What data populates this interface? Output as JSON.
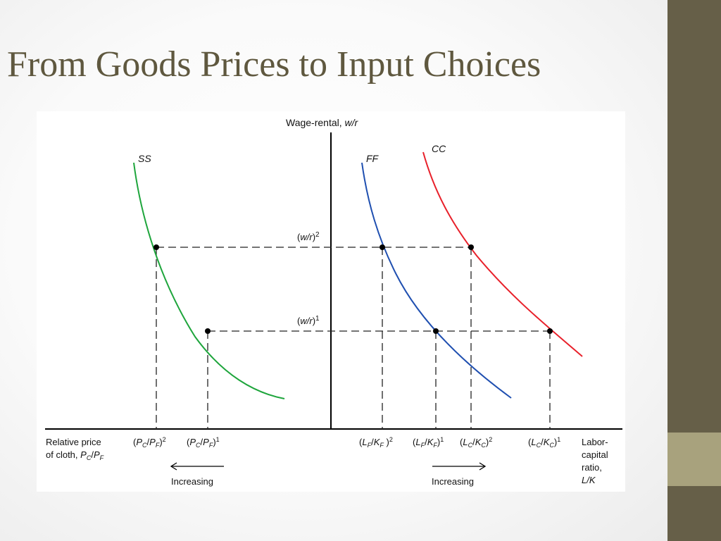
{
  "slide": {
    "title": "From Goods Prices to Input Choices",
    "colors": {
      "sidebar": "#665f48",
      "sidebar_accent": "#a8a27d",
      "title": "#5f583f"
    }
  },
  "diagram": {
    "y_axis_label": "Wage-rental, w/r",
    "curves": [
      {
        "name": "SS",
        "color": "#1ea53c"
      },
      {
        "name": "FF",
        "color": "#1f4fb0"
      },
      {
        "name": "CC",
        "color": "#e8202a"
      }
    ],
    "wage_levels": [
      "(w/r)2",
      "(w/r)1"
    ],
    "left_axis_label": "Relative price of cloth, PC/PF",
    "price_ticks": [
      "(PC/PF)2",
      "(PC/PF)1"
    ],
    "ratio_ticks": [
      "(LF/KF)2",
      "(LF/KF)1",
      "(LC/KC)2",
      "(LC/KC)1"
    ],
    "right_axis_label": "Labor-capital ratio, L/K",
    "left_arrow_label": "Increasing",
    "right_arrow_label": "Increasing"
  }
}
